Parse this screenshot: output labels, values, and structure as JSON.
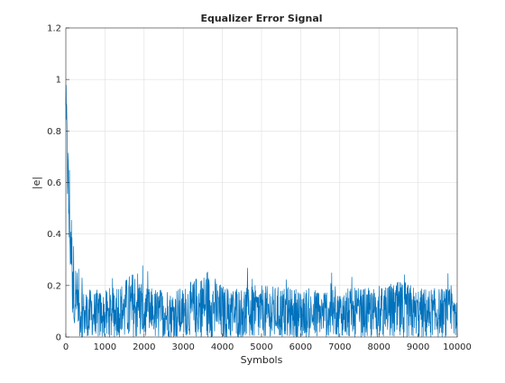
{
  "chart_data": {
    "type": "line",
    "title": "Equalizer Error Signal",
    "xlabel": "Symbols",
    "ylabel": "|e|",
    "xlim": [
      0,
      10000
    ],
    "ylim": [
      0,
      1.2
    ],
    "xticks": [
      0,
      1000,
      2000,
      3000,
      4000,
      5000,
      6000,
      7000,
      8000,
      9000,
      10000
    ],
    "yticks": [
      0,
      0.2,
      0.4,
      0.6,
      0.8,
      1,
      1.2
    ],
    "grid": true,
    "legend": "none",
    "series": [
      {
        "color": "#0072BD",
        "description_of_shape": "noisy magnitude; starts near 0.95, decays rapidly over first ~300 symbols, then fluctuates between ~0 and ~0.2 for remaining symbols",
        "x": [
          0,
          20,
          40,
          60,
          80,
          100,
          120,
          140,
          160,
          180,
          200,
          220,
          240,
          260,
          280,
          300,
          350,
          400,
          500,
          1000,
          1900,
          2000,
          3000,
          3600,
          4000,
          5000,
          6000,
          7000,
          8000,
          8600,
          9000,
          10000
        ],
        "y_upper": [
          0.95,
          0.93,
          0.84,
          0.78,
          0.66,
          0.7,
          0.55,
          0.54,
          0.46,
          0.42,
          0.38,
          0.33,
          0.3,
          0.27,
          0.27,
          0.26,
          0.2,
          0.19,
          0.19,
          0.18,
          0.27,
          0.19,
          0.19,
          0.27,
          0.2,
          0.2,
          0.19,
          0.19,
          0.19,
          0.22,
          0.19,
          0.19
        ],
        "y_lower": [
          0.85,
          0.7,
          0.55,
          0.45,
          0.33,
          0.28,
          0.2,
          0.15,
          0.1,
          0.08,
          0.06,
          0.05,
          0.04,
          0.03,
          0.02,
          0.01,
          0.0,
          0.0,
          0.0,
          0.0,
          0.0,
          0.0,
          0.0,
          0.0,
          0.0,
          0.0,
          0.0,
          0.0,
          0.0,
          0.0,
          0.0,
          0.0
        ]
      }
    ]
  }
}
